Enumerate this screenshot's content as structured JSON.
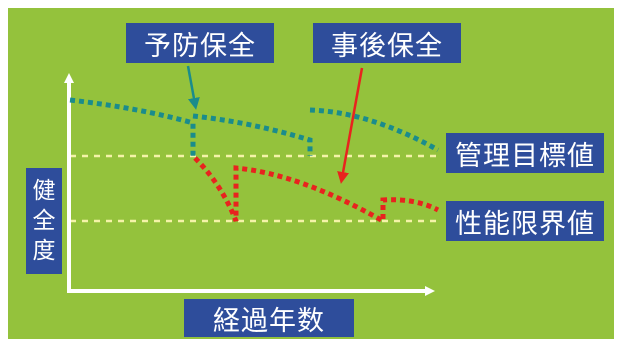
{
  "labels": {
    "preventive": "予防保全",
    "corrective": "事後保全",
    "target_value": "管理目標値",
    "limit_value": "性能限界値",
    "x_axis": "経過年数",
    "y_axis": [
      "健",
      "全",
      "度"
    ]
  },
  "colors": {
    "background": "#94c23c",
    "label_bg": "#2e4d9b",
    "label_text": "#ffffff",
    "preventive_curve": "#1a8c8c",
    "corrective_curve": "#e8231e",
    "threshold_lines": "#f4f3a8",
    "axes": "#ffffff"
  }
}
